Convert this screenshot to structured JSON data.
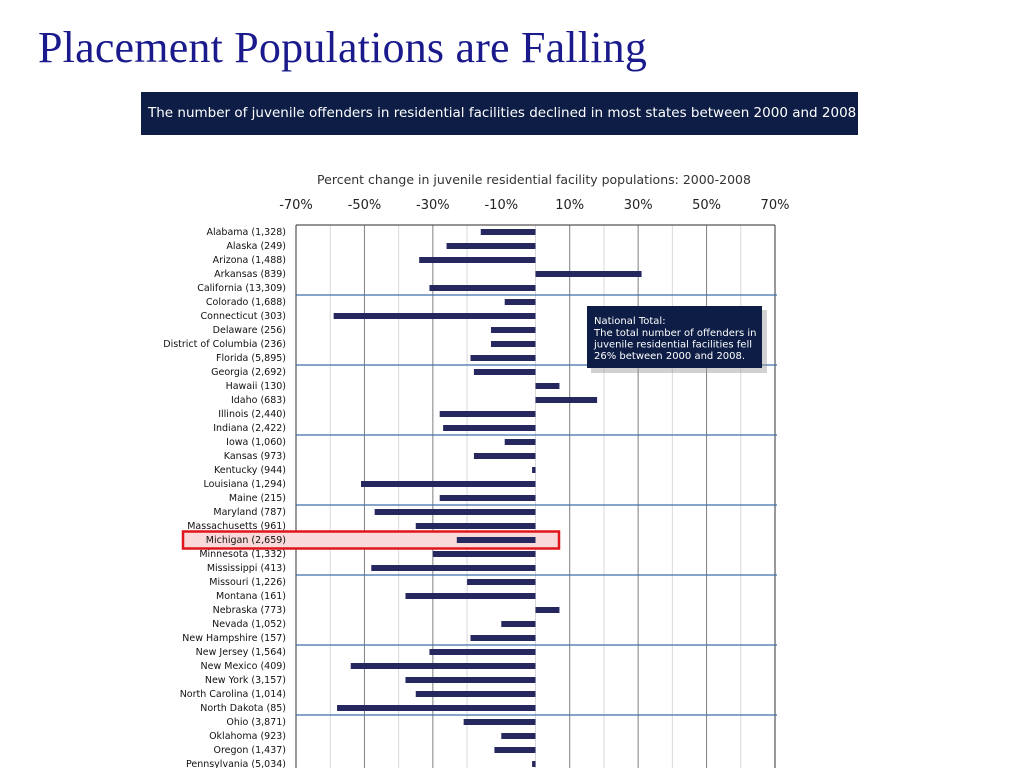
{
  "slide": {
    "title": "Placement Populations are Falling",
    "banner": "The number of juvenile offenders in residential facilities declined in most states between 2000 and 2008"
  },
  "colors": {
    "title": "#1a1a8c",
    "banner_bg": "#0d1d45",
    "bar": "#27275f",
    "highlight_border": "#e0161c",
    "highlight_fill": "#f9d9d9",
    "callout_bg": "#0d1d45"
  },
  "chart_data": {
    "type": "bar",
    "orientation": "horizontal",
    "title": "Percent change in juvenile residential facility populations: 2000-2008",
    "tick_labels": [
      "-70%",
      "-50%",
      "-30%",
      "-10%",
      "10%",
      "30%",
      "50%",
      "70%"
    ],
    "xlim": [
      -70,
      70
    ],
    "grid": true,
    "categories": [
      "Alabama (1,328)",
      "Alaska (249)",
      "Arizona (1,488)",
      "Arkansas (839)",
      "California (13,309)",
      "Colorado (1,688)",
      "Connecticut (303)",
      "Delaware (256)",
      "District of Columbia (236)",
      "Florida (5,895)",
      "Georgia (2,692)",
      "Hawaii (130)",
      "Idaho (683)",
      "Illinois (2,440)",
      "Indiana (2,422)",
      "Iowa (1,060)",
      "Kansas (973)",
      "Kentucky (944)",
      "Louisiana (1,294)",
      "Maine (215)",
      "Maryland (787)",
      "Massachusetts (961)",
      "Michigan (2,659)",
      "Minnesota (1,332)",
      "Mississippi (413)",
      "Missouri (1,226)",
      "Montana (161)",
      "Nebraska (773)",
      "Nevada (1,052)",
      "New Hampshire (157)",
      "New Jersey (1,564)",
      "New Mexico (409)",
      "New York (3,157)",
      "North Carolina (1,014)",
      "North Dakota (85)",
      "Ohio (3,871)",
      "Oklahoma (923)",
      "Oregon (1,437)",
      "Pennsylvania (5,034)"
    ],
    "values": [
      -16,
      -26,
      -34,
      31,
      -31,
      -9,
      -59,
      -13,
      -13,
      -19,
      -18,
      7,
      18,
      -28,
      -27,
      -9,
      -18,
      -1,
      -51,
      -28,
      -47,
      -35,
      -23,
      -30,
      -48,
      -20,
      -38,
      7,
      -10,
      -19,
      -31,
      -54,
      -38,
      -35,
      -58,
      -21,
      -10,
      -12,
      -1
    ],
    "highlight": "Michigan (2,659)",
    "callout": {
      "heading": "National Total:",
      "lines": [
        "The total number of offenders in",
        "juvenile residential facilities fell",
        "26% between 2000 and 2008."
      ]
    }
  }
}
